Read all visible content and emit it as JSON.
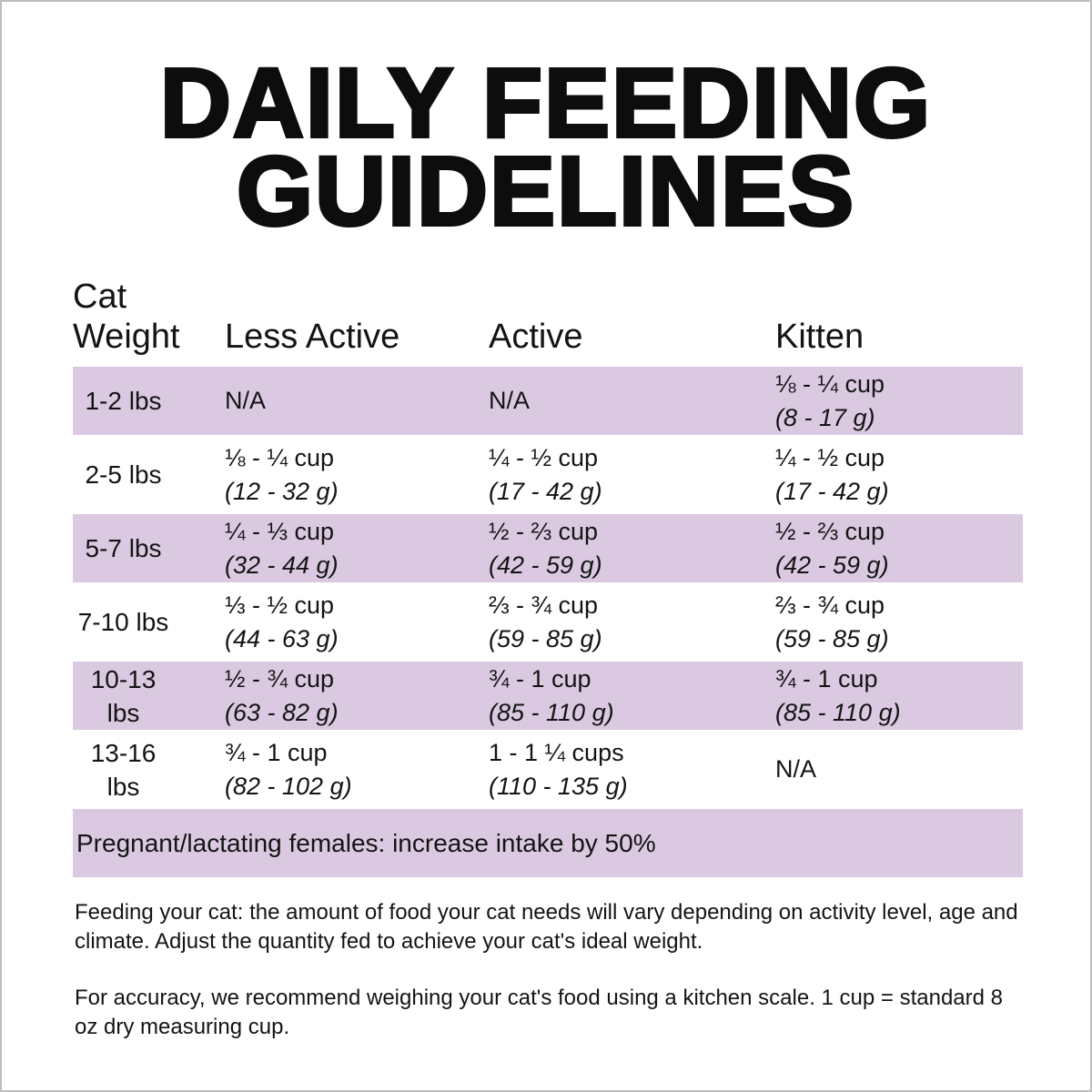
{
  "page": {
    "title_line1": "DAILY FEEDING",
    "title_line2": "GUIDELINES"
  },
  "table": {
    "headers": {
      "weight": "Cat\nWeight",
      "less_active": "Less Active",
      "active": "Active",
      "kitten": "Kitten"
    },
    "rows": [
      {
        "weight": "1-2 lbs",
        "less_active": {
          "cups": "N/A",
          "grams": ""
        },
        "active": {
          "cups": "N/A",
          "grams": ""
        },
        "kitten": {
          "cups": "⅛ - ¼ cup",
          "grams": "(8 - 17 g)"
        }
      },
      {
        "weight": "2-5 lbs",
        "less_active": {
          "cups": "⅛ - ¼ cup",
          "grams": "(12 - 32 g)"
        },
        "active": {
          "cups": "¼ - ½ cup",
          "grams": "(17 - 42 g)"
        },
        "kitten": {
          "cups": "¼ - ½ cup",
          "grams": "(17 - 42 g)"
        }
      },
      {
        "weight": "5-7 lbs",
        "less_active": {
          "cups": "¼ - ⅓ cup",
          "grams": "(32 - 44 g)"
        },
        "active": {
          "cups": "½ - ⅔ cup",
          "grams": "(42 - 59 g)"
        },
        "kitten": {
          "cups": "½ - ⅔ cup",
          "grams": "(42 - 59 g)"
        }
      },
      {
        "weight": "7-10 lbs",
        "less_active": {
          "cups": "⅓ - ½ cup",
          "grams": "(44 - 63 g)"
        },
        "active": {
          "cups": "⅔ - ¾ cup",
          "grams": "(59 - 85 g)"
        },
        "kitten": {
          "cups": "⅔ - ¾ cup",
          "grams": "(59 - 85 g)"
        }
      },
      {
        "weight": "10-13 lbs",
        "less_active": {
          "cups": "½ - ¾ cup",
          "grams": "(63 - 82 g)"
        },
        "active": {
          "cups": "¾ - 1 cup",
          "grams": "(85 - 110 g)"
        },
        "kitten": {
          "cups": "¾ - 1 cup",
          "grams": "(85 - 110 g)"
        }
      },
      {
        "weight": "13-16 lbs",
        "less_active": {
          "cups": "¾ - 1 cup",
          "grams": "(82 - 102 g)"
        },
        "active": {
          "cups": "1 - 1 ¼ cups",
          "grams": "(110 - 135 g)"
        },
        "kitten": {
          "cups": "N/A",
          "grams": ""
        }
      }
    ],
    "note": "Pregnant/lactating females: increase intake by 50%"
  },
  "footnotes": {
    "feeding": "Feeding your cat: the amount of food your cat needs will vary depending on activity level, age and climate. Adjust the quantity fed to achieve your cat's ideal weight.",
    "accuracy": "For accuracy, we recommend weighing your cat's food using a kitchen scale. 1 cup = standard 8 oz dry measuring cup."
  },
  "colors": {
    "band": "#dbc9e2",
    "text": "#141414",
    "border": "#bfbdc0"
  }
}
